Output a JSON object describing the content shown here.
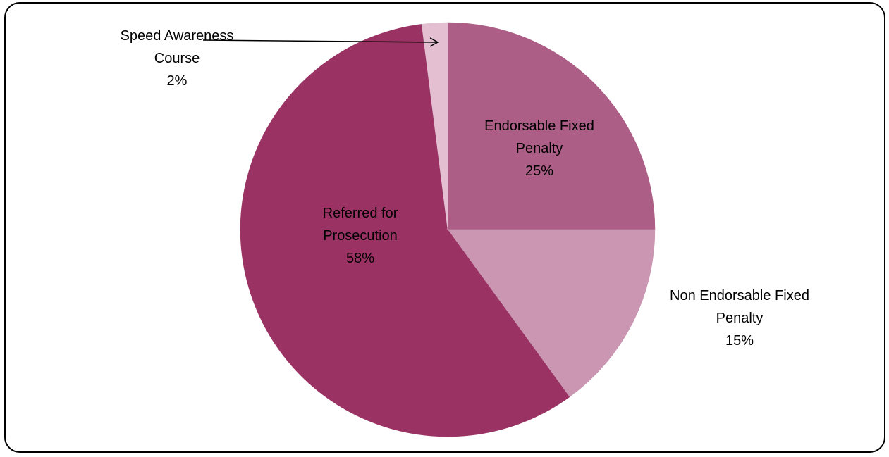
{
  "chart_data": {
    "type": "pie",
    "title": "",
    "start_angle_deg": 0,
    "direction": "clockwise",
    "slices": [
      {
        "name": "Endorsable Fixed Penalty",
        "value": 25,
        "label_lines": [
          "Endorsable Fixed",
          "Penalty",
          "25%"
        ],
        "color": "#AD5E86",
        "label_position": "inside"
      },
      {
        "name": "Non Endorsable Fixed Penalty",
        "value": 15,
        "label_lines": [
          "Non Endorsable Fixed",
          "Penalty",
          "15%"
        ],
        "color": "#CA96B1",
        "label_position": "outside-right"
      },
      {
        "name": "Referred for Prosecution",
        "value": 58,
        "label_lines": [
          "Referred for",
          "Prosecution",
          "58%"
        ],
        "color": "#9A3364",
        "label_position": "inside"
      },
      {
        "name": "Speed Awareness Course",
        "value": 2,
        "label_lines": [
          "Speed Awareness",
          "Course",
          "2%"
        ],
        "color": "#E3BFD1",
        "label_position": "outside-top-left-with-arrow"
      }
    ],
    "legend": "none"
  }
}
